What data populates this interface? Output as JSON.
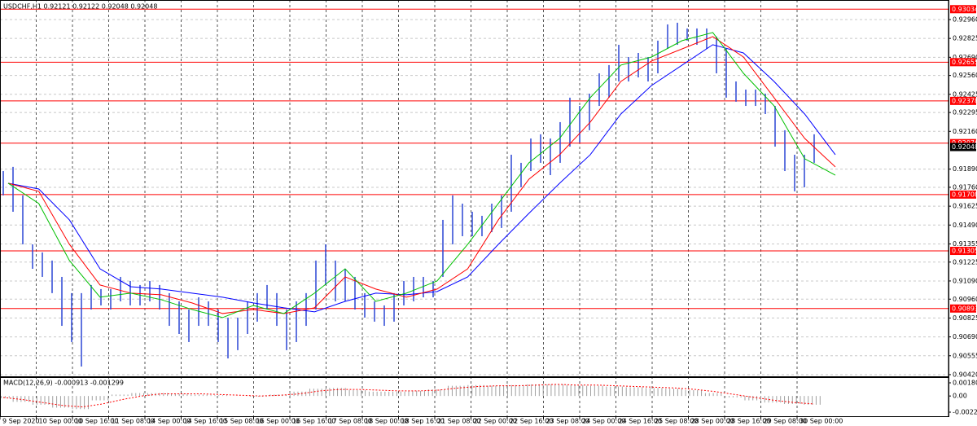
{
  "chart_data": [
    {
      "type": "ohlc",
      "title": "USDCHF,H1  0.92121 0.92122 0.92048 0.92048",
      "color": "#2a46d4",
      "high": [
        0.91876,
        0.91906,
        0.91702,
        0.91352,
        0.91294,
        0.91236,
        0.91119,
        0.91003,
        0.91003,
        0.91061,
        0.91032,
        0.91032,
        0.91119,
        0.9109,
        0.91061,
        0.9109,
        0.91061,
        0.91003,
        0.90944,
        0.90886,
        0.90973,
        0.90944,
        0.90886,
        0.90828,
        0.90828,
        0.90944,
        0.91003,
        0.91061,
        0.91003,
        0.90886,
        0.90944,
        0.91003,
        0.91236,
        0.91352,
        0.91236,
        0.91177,
        0.91119,
        0.91003,
        0.90944,
        0.90915,
        0.91003,
        0.9109,
        0.91119,
        0.91119,
        0.9109,
        0.91527,
        0.91702,
        0.91643,
        0.91585,
        0.91556,
        0.91643,
        0.91702,
        0.91993,
        0.91935,
        0.92109,
        0.92139,
        0.92109,
        0.92226,
        0.92401,
        0.92342,
        0.9243,
        0.92575,
        0.92634,
        0.92779,
        0.92692,
        0.92721,
        0.92692,
        0.92809,
        0.92925,
        0.92937,
        0.92896,
        0.92896,
        0.92896,
        0.92838,
        0.9275,
        0.92517,
        0.92459,
        0.92459,
        0.9243,
        0.92342,
        0.92168,
        0.91993,
        0.91993,
        0.92139
      ],
      "low": [
        0.91702,
        0.91585,
        0.91352,
        0.91177,
        0.91119,
        0.91003,
        0.90769,
        0.90653,
        0.90478,
        0.90886,
        0.90915,
        0.90886,
        0.90944,
        0.90915,
        0.90915,
        0.90944,
        0.90886,
        0.90769,
        0.90711,
        0.90653,
        0.90769,
        0.90769,
        0.90653,
        0.90536,
        0.90595,
        0.90711,
        0.90799,
        0.90886,
        0.90769,
        0.90595,
        0.90653,
        0.90769,
        0.90886,
        0.91061,
        0.90944,
        0.90944,
        0.90886,
        0.90828,
        0.90799,
        0.90769,
        0.90799,
        0.90915,
        0.90944,
        0.90973,
        0.90973,
        0.91119,
        0.91352,
        0.9141,
        0.9141,
        0.9141,
        0.91439,
        0.91469,
        0.91585,
        0.9176,
        0.91876,
        0.91935,
        0.91847,
        0.91935,
        0.92051,
        0.9208,
        0.92168,
        0.92342,
        0.92401,
        0.92517,
        0.92517,
        0.92546,
        0.92517,
        0.92575,
        0.9275,
        0.92779,
        0.92809,
        0.92779,
        0.9275,
        0.92575,
        0.92401,
        0.92372,
        0.92342,
        0.92342,
        0.92284,
        0.92051,
        0.91876,
        0.91731,
        0.9176,
        0.91935
      ],
      "series": [
        {
          "color": "#0000ff",
          "values": [
            0.91789,
            0.91748,
            0.91527,
            0.91177,
            0.91049,
            0.91032,
            0.91003,
            0.90974,
            0.90933,
            0.90898,
            0.90869,
            0.90944,
            0.91003,
            0.90991,
            0.91014,
            0.91119,
            0.91352,
            0.91574,
            0.91789,
            0.91993,
            0.92284,
            0.92488,
            0.92634,
            0.9278,
            0.92721,
            0.92517,
            0.92284,
            0.91993
          ]
        },
        {
          "color": "#ff0000",
          "values": [
            0.91789,
            0.91731,
            0.91352,
            0.91061,
            0.91003,
            0.90991,
            0.90933,
            0.90857,
            0.90886,
            0.90857,
            0.90898,
            0.91119,
            0.91032,
            0.90974,
            0.91032,
            0.91177,
            0.91527,
            0.91818,
            0.91993,
            0.92226,
            0.92517,
            0.92663,
            0.9275,
            0.92838,
            0.92692,
            0.92401,
            0.9211,
            0.91906
          ]
        },
        {
          "color": "#00c000",
          "values": [
            0.91789,
            0.91644,
            0.91236,
            0.90974,
            0.91003,
            0.90956,
            0.90886,
            0.90828,
            0.90915,
            0.90857,
            0.91003,
            0.91177,
            0.90944,
            0.91003,
            0.9109,
            0.91352,
            0.91644,
            0.91935,
            0.9211,
            0.92401,
            0.92634,
            0.92692,
            0.92809,
            0.92867,
            0.92576,
            0.92343,
            0.91964,
            0.91847
          ]
        }
      ],
      "levels": [
        0.93034,
        0.92655,
        0.92378,
        0.92076,
        0.91708,
        0.91305,
        0.90893
      ],
      "level_color": "#ff0000",
      "current_price": 0.92048,
      "ylim": [
        0.90408,
        0.93088
      ],
      "yticks": [
        {
          "value": 0.9296,
          "label": "0.92960"
        },
        0.92825,
        {
          "value": 0.9269,
          "label": "0.92690"
        },
        {
          "value": 0.9256,
          "label": "0.92560"
        },
        0.92425,
        0.92295,
        {
          "value": 0.9216,
          "label": "0.92160"
        },
        {
          "value": 0.9189,
          "label": "0.91890"
        },
        {
          "value": 0.9176,
          "label": "0.91760"
        },
        0.91625,
        {
          "value": 0.9149,
          "label": "0.91490"
        },
        0.91355,
        0.91225,
        {
          "value": 0.9109,
          "label": "0.91090"
        },
        {
          "value": 0.9096,
          "label": "0.90960"
        },
        0.90825,
        {
          "value": 0.9069,
          "label": "0.90690"
        },
        0.90555,
        {
          "value": 0.9042,
          "label": "0.90420"
        }
      ],
      "xticks": [
        "9 Sep 2020",
        "10 Sep 00:00",
        "10 Sep 16:00",
        "11 Sep 08:00",
        "14 Sep 00:00",
        "14 Sep 16:00",
        "15 Sep 08:00",
        "16 Sep 00:00",
        "16 Sep 16:00",
        "17 Sep 08:00",
        "18 Sep 00:00",
        "18 Sep 16:00",
        "21 Sep 08:00",
        "22 Sep 00:00",
        "22 Sep 16:00",
        "23 Sep 08:00",
        "24 Sep 00:00",
        "24 Sep 16:00",
        "25 Sep 08:00",
        "28 Sep 00:00",
        "28 Sep 16:00",
        "29 Sep 08:00",
        "30 Sep 00:00"
      ],
      "grid": true
    },
    {
      "type": "macd",
      "title": "MACD(12,26,9) -0.000913 -0.001299",
      "values": [
        -0.0003,
        -0.0008,
        -0.0012,
        -0.0016,
        -0.0018,
        -0.0006,
        0.0002,
        0.0004,
        0.0004,
        0.0003,
        0.0002,
        0.0001,
        0.0,
        -0.0001,
        0.0002,
        0.0006,
        0.001,
        0.0011,
        0.0008,
        0.0006,
        0.0006,
        0.0007,
        0.0009,
        0.0014,
        0.0015,
        0.0014,
        0.0015,
        0.0016,
        0.0016,
        0.0015,
        0.0014,
        0.0013,
        0.0012,
        0.0011,
        0.001,
        0.0008,
        0.0004,
        -0.0002,
        -0.0006,
        -0.0009,
        -0.0011,
        -0.0012
      ],
      "signal": [
        -0.0002,
        -0.0005,
        -0.0009,
        -0.0013,
        -0.0015,
        -0.0011,
        -0.0005,
        0.0,
        0.0003,
        0.0003,
        0.0003,
        0.0002,
        0.0001,
        0.0,
        0.0001,
        0.0003,
        0.0007,
        0.0009,
        0.0009,
        0.0008,
        0.0007,
        0.0007,
        0.0008,
        0.0011,
        0.0013,
        0.0014,
        0.0014,
        0.0015,
        0.0016,
        0.0015,
        0.0015,
        0.0014,
        0.0013,
        0.0012,
        0.0011,
        0.0009,
        0.0006,
        0.0002,
        -0.0002,
        -0.0006,
        -0.0009,
        -0.0011
      ],
      "color": "#a0a0a0",
      "signal_color": "#ff0000",
      "ylim": [
        -0.00289,
        0.002478
      ],
      "yticks": [
        0.001807,
        {
          "value": 0,
          "label": "0.00"
        },
        -0.002219
      ]
    }
  ]
}
